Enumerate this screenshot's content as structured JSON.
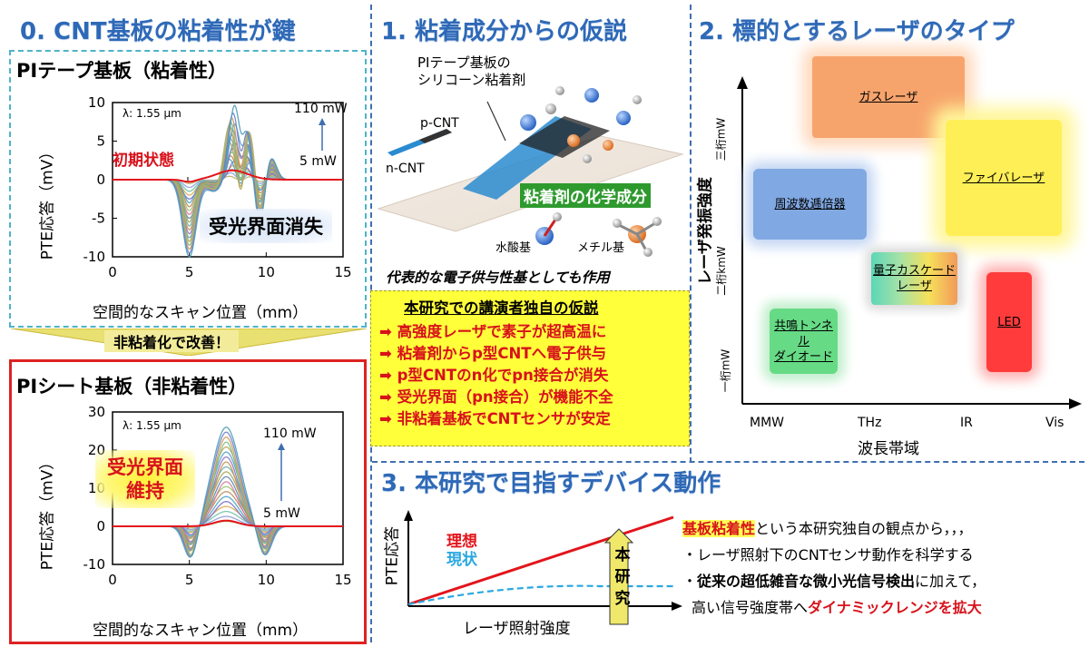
{
  "sections": {
    "s0": {
      "title": "0. CNT基板の粘着性が鍵"
    },
    "s1": {
      "title": "1. 粘着成分からの仮説"
    },
    "s2": {
      "title": "2. 標的とするレーザのタイプ"
    },
    "s3": {
      "title": "3. 本研究で目指すデバイス動作"
    }
  },
  "plot_top": {
    "title": "PIテープ基板（粘着性）",
    "lambda": "λ: 1.55 μm",
    "power_high": "110 mW",
    "power_low": "5 mW",
    "initial_label": "初期状態",
    "callout": "受光界面消失",
    "ylabel": "PTE応答（mV）",
    "xlabel": "空間的なスキャン位置（mm）",
    "xticks": [
      "0",
      "5",
      "10",
      "15"
    ],
    "yticks": [
      "10",
      "5",
      "0",
      "-5",
      "-10"
    ]
  },
  "arrow_banner": {
    "label": "非粘着化で改善！"
  },
  "plot_bottom": {
    "title": "PIシート基板（非粘着性）",
    "lambda": "λ: 1.55 μm",
    "power_high": "110 mW",
    "power_low": "5 mW",
    "callout_l1": "受光界面",
    "callout_l2": "維持",
    "ylabel": "PTE応答（mV）",
    "xlabel": "空間的なスキャン位置（mm）",
    "xticks": [
      "0",
      "5",
      "10",
      "15"
    ],
    "yticks": [
      "30",
      "20",
      "10",
      "0",
      "-10"
    ]
  },
  "hypothesis_fig": {
    "substrate_l1": "PIテープ基板の",
    "substrate_l2": "シリコーン粘着剤",
    "p_cnt": "p-CNT",
    "n_cnt": "n-CNT",
    "chem_label": "粘着剤の化学成分",
    "hydroxyl": "水酸基",
    "methyl": "メチル基",
    "caption": "代表的な電子供与性基としても作用"
  },
  "hypothesis_box": {
    "title": "本研究での講演者独自の仮説",
    "items": [
      "高強度レーザで素子が超高温に",
      "粘着剤からp型CNTへ電子供与",
      "p型CNTのn化でpn接合が消失",
      "受光界面（pn接合）が機能不全",
      "非粘着基板でCNTセンサが安定"
    ]
  },
  "laser_chart": {
    "ylabel": "レーザ発振強度",
    "xlabel": "波長帯域",
    "yticks": [
      "三桁mW",
      "二桁kmW",
      "一桁mW"
    ],
    "xticks": [
      "MMW",
      "THz",
      "IR",
      "Vis"
    ],
    "boxes": [
      {
        "label": "ガスレーザ",
        "color": "#f5a36a"
      },
      {
        "label": "ファイバレーザ",
        "color": "#ffee55"
      },
      {
        "label": "周波数逓倍器",
        "color": "#7ea6e0"
      },
      {
        "label": "量子カスケード",
        "label2": "レーザ",
        "color": "#9ad"
      },
      {
        "label": "LED",
        "color": "#ff3b3b"
      },
      {
        "label": "共鳴トンネル",
        "label2": "ダイオード",
        "color": "#6edc8a"
      }
    ]
  },
  "device_chart": {
    "ylabel": "PTE応答",
    "xlabel": "レーザ照射強度",
    "ideal": "理想",
    "current": "現状",
    "arrow_label": [
      "本",
      "研",
      "究"
    ]
  },
  "device_text": {
    "line1_em": "基板粘着性",
    "line1_rest": "という本研究独自の観点から，，，",
    "line2": "・レーザ照射下のCNTセンサ動作を科学する",
    "line3_pre": "・",
    "line3_em": "従来の超低雑音な微小光信号検出",
    "line3_rest": "に加えて，",
    "line4_pre": "高い信号強度帯へ",
    "line4_em": "ダイナミックレンジを拡大"
  },
  "colors": {
    "title_blue": "#2e69b7",
    "red": "#d8121b",
    "teal_border": "#4fb3c9",
    "dash_blue": "#3f6fb0"
  }
}
